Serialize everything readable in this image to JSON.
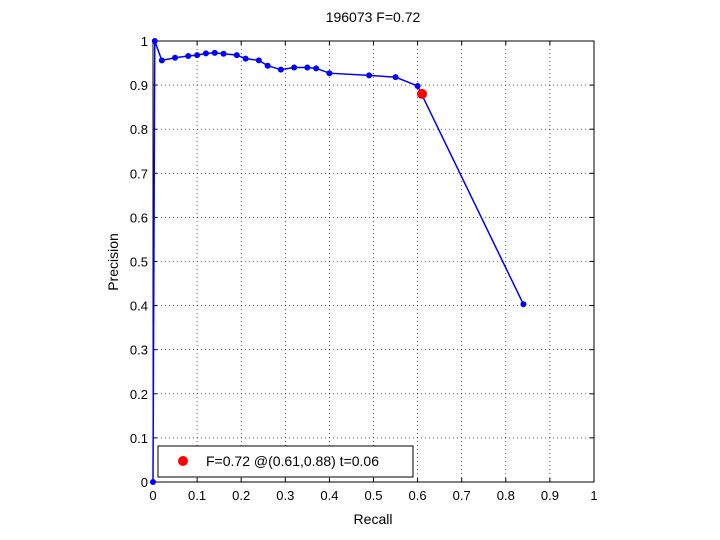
{
  "chart_data": {
    "type": "line",
    "title": "196073 F=0.72",
    "xlabel": "Recall",
    "ylabel": "Precision",
    "xlim": [
      0,
      1
    ],
    "ylim": [
      0,
      1
    ],
    "xticks": [
      "0",
      "0.1",
      "0.2",
      "0.3",
      "0.4",
      "0.5",
      "0.6",
      "0.7",
      "0.8",
      "0.9",
      "1"
    ],
    "yticks": [
      "0",
      "0.1",
      "0.2",
      "0.3",
      "0.4",
      "0.5",
      "0.6",
      "0.7",
      "0.8",
      "0.9",
      "1"
    ],
    "grid": true,
    "legend_position": "bottom-left",
    "series": [
      {
        "color": "#0000ff",
        "marker": "dot",
        "points": [
          [
            0,
            0
          ],
          [
            0.004,
            1.0
          ],
          [
            0.02,
            0.956
          ],
          [
            0.05,
            0.962
          ],
          [
            0.08,
            0.966
          ],
          [
            0.1,
            0.968
          ],
          [
            0.12,
            0.972
          ],
          [
            0.14,
            0.973
          ],
          [
            0.16,
            0.971
          ],
          [
            0.19,
            0.968
          ],
          [
            0.21,
            0.96
          ],
          [
            0.24,
            0.956
          ],
          [
            0.26,
            0.944
          ],
          [
            0.29,
            0.935
          ],
          [
            0.32,
            0.94
          ],
          [
            0.35,
            0.94
          ],
          [
            0.37,
            0.938
          ],
          [
            0.4,
            0.927
          ],
          [
            0.49,
            0.922
          ],
          [
            0.55,
            0.918
          ],
          [
            0.6,
            0.898
          ],
          [
            0.84,
            0.403
          ]
        ]
      }
    ],
    "best_point": {
      "recall": 0.61,
      "precision": 0.88,
      "color": "#ff0000",
      "legend_label": "F=0.72 @(0.61,0.88) t=0.06"
    }
  }
}
